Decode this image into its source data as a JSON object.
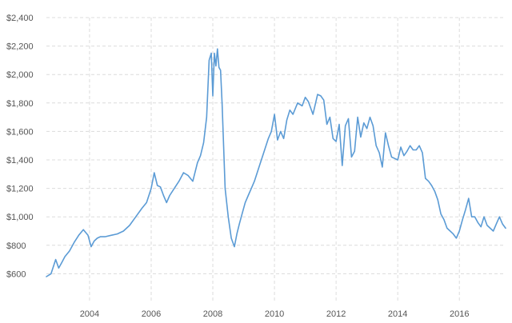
{
  "chart_data": {
    "type": "line",
    "xlim": [
      2002.6,
      2017.5
    ],
    "ylim": [
      400,
      2400
    ],
    "y_ticks": [
      {
        "value": 600,
        "label": "$600"
      },
      {
        "value": 800,
        "label": "$800"
      },
      {
        "value": 1000,
        "label": "$1,000"
      },
      {
        "value": 1200,
        "label": "$1,200"
      },
      {
        "value": 1400,
        "label": "$1,400"
      },
      {
        "value": 1600,
        "label": "$1,600"
      },
      {
        "value": 1800,
        "label": "$1,800"
      },
      {
        "value": 2000,
        "label": "$2,000"
      },
      {
        "value": 2200,
        "label": "$2,200"
      },
      {
        "value": 2400,
        "label": "$2,400"
      }
    ],
    "x_ticks": [
      {
        "value": 2004,
        "label": "2004"
      },
      {
        "value": 2006,
        "label": "2006"
      },
      {
        "value": 2008,
        "label": "2008"
      },
      {
        "value": 2010,
        "label": "2010"
      },
      {
        "value": 2012,
        "label": "2012"
      },
      {
        "value": 2014,
        "label": "2014"
      },
      {
        "value": 2016,
        "label": "2016"
      }
    ],
    "grid": true,
    "series": [
      {
        "color": "#5b9bd5",
        "x": [
          2002.6,
          2002.75,
          2002.9,
          2003.0,
          2003.1,
          2003.2,
          2003.35,
          2003.5,
          2003.65,
          2003.8,
          2003.95,
          2004.05,
          2004.15,
          2004.25,
          2004.35,
          2004.5,
          2004.7,
          2004.9,
          2005.1,
          2005.3,
          2005.5,
          2005.7,
          2005.85,
          2006.0,
          2006.1,
          2006.2,
          2006.3,
          2006.4,
          2006.5,
          2006.6,
          2006.75,
          2006.9,
          2007.05,
          2007.2,
          2007.35,
          2007.5,
          2007.6,
          2007.7,
          2007.8,
          2007.88,
          2007.95,
          2008.0,
          2008.05,
          2008.1,
          2008.15,
          2008.2,
          2008.25,
          2008.3,
          2008.35,
          2008.4,
          2008.5,
          2008.6,
          2008.7,
          2008.78,
          2008.86,
          2008.95,
          2009.05,
          2009.15,
          2009.25,
          2009.35,
          2009.5,
          2009.65,
          2009.8,
          2009.9,
          2010.0,
          2010.1,
          2010.2,
          2010.3,
          2010.4,
          2010.5,
          2010.6,
          2010.75,
          2010.9,
          2011.0,
          2011.1,
          2011.25,
          2011.4,
          2011.5,
          2011.6,
          2011.7,
          2011.8,
          2011.9,
          2012.0,
          2012.1,
          2012.2,
          2012.3,
          2012.4,
          2012.5,
          2012.6,
          2012.7,
          2012.8,
          2012.9,
          2013.0,
          2013.1,
          2013.2,
          2013.3,
          2013.4,
          2013.5,
          2013.6,
          2013.7,
          2013.8,
          2013.9,
          2014.0,
          2014.1,
          2014.2,
          2014.3,
          2014.4,
          2014.5,
          2014.6,
          2014.7,
          2014.8,
          2014.9,
          2015.0,
          2015.1,
          2015.2,
          2015.3,
          2015.4,
          2015.5,
          2015.6,
          2015.7,
          2015.8,
          2015.9,
          2016.0,
          2016.1,
          2016.2,
          2016.3,
          2016.4,
          2016.5,
          2016.6,
          2016.7,
          2016.8,
          2016.9,
          2017.0,
          2017.1,
          2017.2,
          2017.3,
          2017.4,
          2017.5
        ],
        "values": [
          580,
          600,
          700,
          640,
          680,
          720,
          760,
          820,
          870,
          910,
          870,
          790,
          830,
          850,
          860,
          860,
          870,
          880,
          900,
          940,
          1000,
          1060,
          1100,
          1200,
          1310,
          1220,
          1210,
          1150,
          1100,
          1150,
          1200,
          1250,
          1310,
          1290,
          1250,
          1380,
          1430,
          1520,
          1700,
          2100,
          2150,
          1850,
          2150,
          2060,
          2180,
          2050,
          2030,
          1800,
          1500,
          1200,
          1000,
          850,
          790,
          880,
          950,
          1020,
          1100,
          1150,
          1200,
          1250,
          1350,
          1450,
          1550,
          1600,
          1720,
          1540,
          1600,
          1550,
          1680,
          1750,
          1720,
          1800,
          1780,
          1840,
          1810,
          1720,
          1860,
          1850,
          1820,
          1650,
          1700,
          1550,
          1530,
          1650,
          1360,
          1640,
          1690,
          1420,
          1460,
          1700,
          1560,
          1660,
          1620,
          1700,
          1640,
          1500,
          1450,
          1350,
          1590,
          1500,
          1420,
          1410,
          1400,
          1490,
          1430,
          1460,
          1500,
          1470,
          1470,
          1500,
          1450,
          1270,
          1250,
          1220,
          1180,
          1120,
          1020,
          980,
          920,
          900,
          880,
          850,
          900,
          980,
          1050,
          1130,
          1000,
          1000,
          960,
          930,
          1000,
          940,
          920,
          900,
          950,
          1000,
          950,
          920
        ]
      }
    ]
  }
}
